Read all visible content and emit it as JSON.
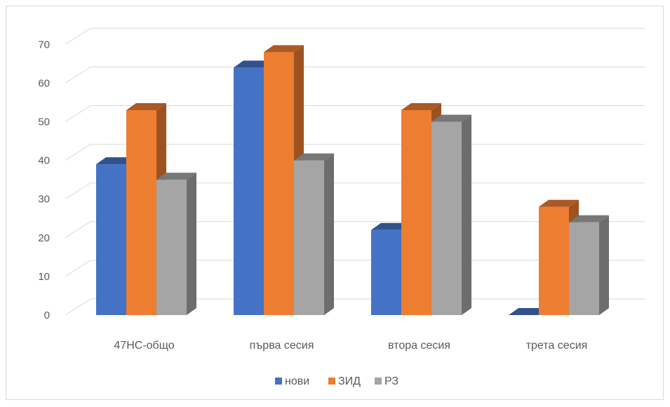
{
  "chart_data": {
    "type": "bar",
    "title": "",
    "xlabel": "",
    "ylabel": "",
    "ylim": [
      0,
      70
    ],
    "yticks": [
      0,
      10,
      20,
      30,
      40,
      50,
      60,
      70
    ],
    "grid": true,
    "legend_position": "bottom",
    "categories": [
      "47НС-общо",
      "първа сесия",
      "втора сесия",
      "трета сесия"
    ],
    "series": [
      {
        "name": "нови",
        "values": [
          39,
          64,
          22,
          0
        ],
        "color": "#4472C4"
      },
      {
        "name": "ЗИД",
        "values": [
          53,
          68,
          53,
          28
        ],
        "color": "#ED7D31"
      },
      {
        "name": "РЗ",
        "values": [
          35,
          40,
          50,
          24
        ],
        "color": "#A5A5A5"
      }
    ]
  }
}
